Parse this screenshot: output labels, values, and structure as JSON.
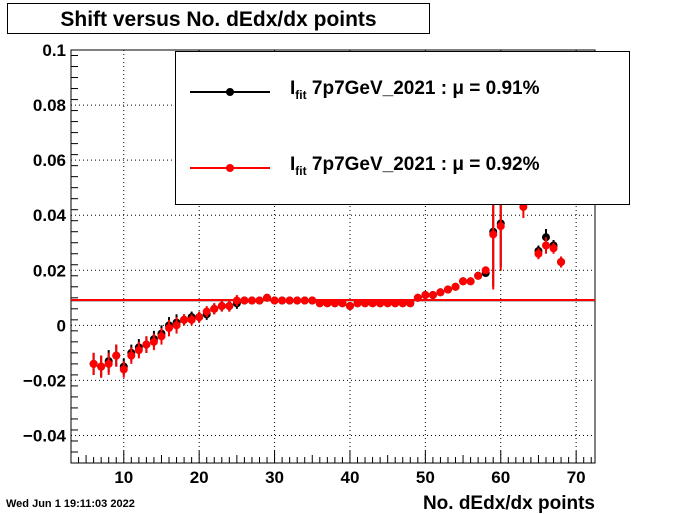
{
  "title": "Shift versus No. dEdx/dx points",
  "footer_timestamp": "Wed Jun  1 19:11:03 2022",
  "legend": {
    "entries": [
      {
        "symbol": "I",
        "sub": "fit",
        "label": "7p7GeV_2021 : μ =  0.91%",
        "color": "#000000"
      },
      {
        "symbol": "I",
        "sub": "fit",
        "label": "7p7GeV_2021 : μ =  0.92%",
        "color": "#ff0000"
      }
    ]
  },
  "chart_data": {
    "type": "scatter",
    "title": "Shift versus No. dEdx/dx points",
    "xlabel": "No. dEdx/dx points",
    "ylabel": "",
    "xlim": [
      3,
      72.5
    ],
    "ylim": [
      -0.05,
      0.1
    ],
    "x_ticks": [
      10,
      20,
      30,
      40,
      50,
      60,
      70
    ],
    "y_ticks": [
      -0.04,
      -0.02,
      0,
      0.02,
      0.04,
      0.06,
      0.08,
      0.1
    ],
    "y_tick_labels": [
      "−0.04",
      "−0.02",
      "0",
      "0.02",
      "0.04",
      "0.06",
      "0.08",
      "0.1"
    ],
    "grid": true,
    "legend_position": "top-right",
    "series": [
      {
        "label_ref": "legend.entries.0",
        "color": "#000000",
        "mean_line": 0.0091,
        "points": [
          [
            6,
            -0.014,
            0.004
          ],
          [
            7,
            -0.015,
            0.004
          ],
          [
            8,
            -0.013,
            0.004
          ],
          [
            9,
            -0.011,
            0.004
          ],
          [
            10,
            -0.015,
            0.003
          ],
          [
            11,
            -0.01,
            0.003
          ],
          [
            12,
            -0.008,
            0.003
          ],
          [
            13,
            -0.007,
            0.003
          ],
          [
            14,
            -0.005,
            0.003
          ],
          [
            15,
            -0.003,
            0.003
          ],
          [
            16,
            0.0,
            0.003
          ],
          [
            17,
            0.001,
            0.003
          ],
          [
            18,
            0.002,
            0.002
          ],
          [
            19,
            0.003,
            0.002
          ],
          [
            20,
            0.003,
            0.002
          ],
          [
            21,
            0.004,
            0.002
          ],
          [
            22,
            0.006,
            0.002
          ],
          [
            23,
            0.007,
            0.002
          ],
          [
            24,
            0.007,
            0.002
          ],
          [
            25,
            0.008,
            0.002
          ],
          [
            26,
            0.009,
            0.001
          ],
          [
            27,
            0.009,
            0.001
          ],
          [
            28,
            0.009,
            0.001
          ],
          [
            29,
            0.01,
            0.001
          ],
          [
            30,
            0.009,
            0.001
          ],
          [
            31,
            0.009,
            0.001
          ],
          [
            32,
            0.009,
            0.001
          ],
          [
            33,
            0.009,
            0.001
          ],
          [
            34,
            0.009,
            0.001
          ],
          [
            35,
            0.009,
            0.001
          ],
          [
            36,
            0.008,
            0.001
          ],
          [
            37,
            0.008,
            0.001
          ],
          [
            38,
            0.008,
            0.001
          ],
          [
            39,
            0.008,
            0.001
          ],
          [
            40,
            0.007,
            0.001
          ],
          [
            41,
            0.008,
            0.001
          ],
          [
            42,
            0.008,
            0.001
          ],
          [
            43,
            0.008,
            0.001
          ],
          [
            44,
            0.008,
            0.001
          ],
          [
            45,
            0.008,
            0.001
          ],
          [
            46,
            0.008,
            0.001
          ],
          [
            47,
            0.008,
            0.001
          ],
          [
            48,
            0.008,
            0.001
          ],
          [
            49,
            0.01,
            0.001
          ],
          [
            50,
            0.011,
            0.001
          ],
          [
            51,
            0.011,
            0.001
          ],
          [
            52,
            0.012,
            0.001
          ],
          [
            53,
            0.013,
            0.001
          ],
          [
            54,
            0.014,
            0.001
          ],
          [
            55,
            0.016,
            0.001
          ],
          [
            56,
            0.016,
            0.001
          ],
          [
            57,
            0.018,
            0.001
          ],
          [
            58,
            0.019,
            0.001
          ],
          [
            59,
            0.034,
            0.02
          ],
          [
            60,
            0.037,
            0.016
          ],
          [
            65,
            0.027,
            0.002
          ],
          [
            66,
            0.032,
            0.003
          ],
          [
            67,
            0.029,
            0.002
          ],
          [
            68,
            0.023,
            0.002
          ]
        ]
      },
      {
        "label_ref": "legend.entries.1",
        "color": "#ff0000",
        "mean_line": 0.0092,
        "points": [
          [
            6,
            -0.014,
            0.004
          ],
          [
            7,
            -0.015,
            0.004
          ],
          [
            8,
            -0.014,
            0.004
          ],
          [
            9,
            -0.011,
            0.004
          ],
          [
            10,
            -0.016,
            0.003
          ],
          [
            11,
            -0.011,
            0.003
          ],
          [
            12,
            -0.009,
            0.003
          ],
          [
            13,
            -0.007,
            0.003
          ],
          [
            14,
            -0.006,
            0.003
          ],
          [
            15,
            -0.004,
            0.003
          ],
          [
            16,
            -0.001,
            0.003
          ],
          [
            17,
            0.0,
            0.003
          ],
          [
            18,
            0.002,
            0.002
          ],
          [
            19,
            0.002,
            0.002
          ],
          [
            20,
            0.003,
            0.002
          ],
          [
            21,
            0.005,
            0.002
          ],
          [
            22,
            0.006,
            0.002
          ],
          [
            23,
            0.007,
            0.002
          ],
          [
            24,
            0.007,
            0.002
          ],
          [
            25,
            0.009,
            0.002
          ],
          [
            26,
            0.009,
            0.001
          ],
          [
            27,
            0.009,
            0.001
          ],
          [
            28,
            0.009,
            0.001
          ],
          [
            29,
            0.01,
            0.001
          ],
          [
            30,
            0.009,
            0.001
          ],
          [
            31,
            0.009,
            0.001
          ],
          [
            32,
            0.009,
            0.001
          ],
          [
            33,
            0.009,
            0.001
          ],
          [
            34,
            0.009,
            0.001
          ],
          [
            35,
            0.009,
            0.001
          ],
          [
            36,
            0.008,
            0.001
          ],
          [
            37,
            0.008,
            0.001
          ],
          [
            38,
            0.008,
            0.001
          ],
          [
            39,
            0.008,
            0.001
          ],
          [
            40,
            0.007,
            0.001
          ],
          [
            41,
            0.008,
            0.001
          ],
          [
            42,
            0.008,
            0.001
          ],
          [
            43,
            0.008,
            0.001
          ],
          [
            44,
            0.008,
            0.001
          ],
          [
            45,
            0.008,
            0.001
          ],
          [
            46,
            0.008,
            0.001
          ],
          [
            47,
            0.008,
            0.001
          ],
          [
            48,
            0.008,
            0.001
          ],
          [
            49,
            0.01,
            0.001
          ],
          [
            50,
            0.011,
            0.001
          ],
          [
            51,
            0.011,
            0.001
          ],
          [
            52,
            0.012,
            0.001
          ],
          [
            53,
            0.013,
            0.001
          ],
          [
            54,
            0.014,
            0.001
          ],
          [
            55,
            0.016,
            0.001
          ],
          [
            56,
            0.016,
            0.001
          ],
          [
            57,
            0.018,
            0.001
          ],
          [
            58,
            0.02,
            0.001
          ],
          [
            59,
            0.033,
            0.02
          ],
          [
            60,
            0.036,
            0.016
          ],
          [
            63,
            0.043,
            0.004
          ],
          [
            65,
            0.026,
            0.002
          ],
          [
            66,
            0.029,
            0.003
          ],
          [
            67,
            0.028,
            0.002
          ],
          [
            68,
            0.023,
            0.002
          ]
        ]
      }
    ]
  }
}
